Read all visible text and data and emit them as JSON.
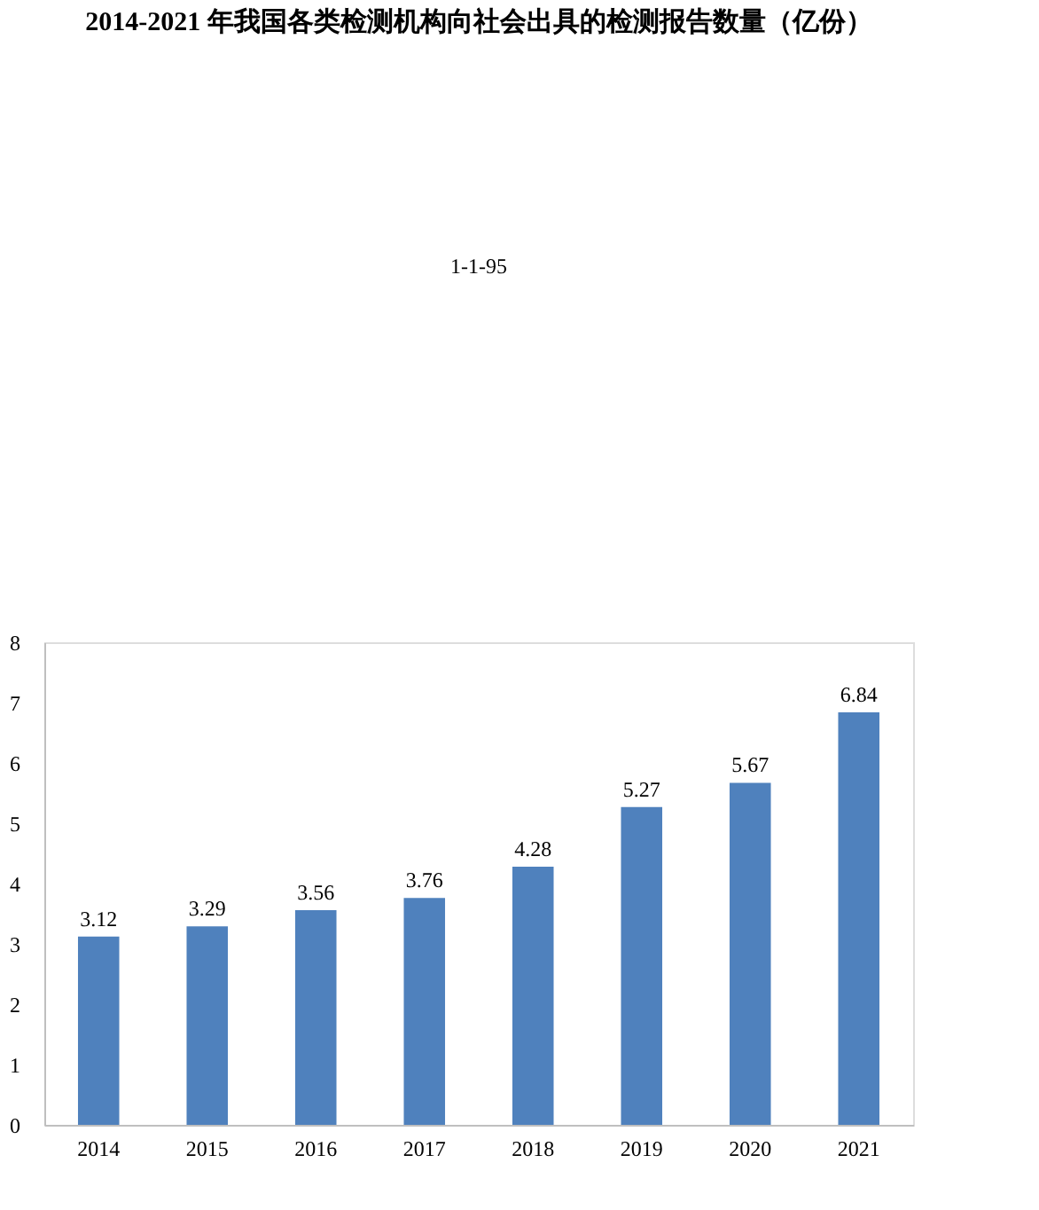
{
  "chart_data": {
    "type": "bar",
    "title": "2014-2021 年我国各类检测机构向社会出具的检测报告数量（亿份）",
    "annotations": [
      "1-1-95"
    ],
    "categories": [
      "2014",
      "2015",
      "2016",
      "2017",
      "2018",
      "2019",
      "2020",
      "2021"
    ],
    "values": [
      3.12,
      3.29,
      3.56,
      3.76,
      4.28,
      5.27,
      5.67,
      6.84
    ],
    "color": "#4f81bd",
    "ylim": [
      0,
      8
    ],
    "yticks": [
      0,
      1,
      2,
      3,
      4,
      5,
      6,
      7,
      8
    ],
    "grid": false,
    "data_labels": true
  }
}
